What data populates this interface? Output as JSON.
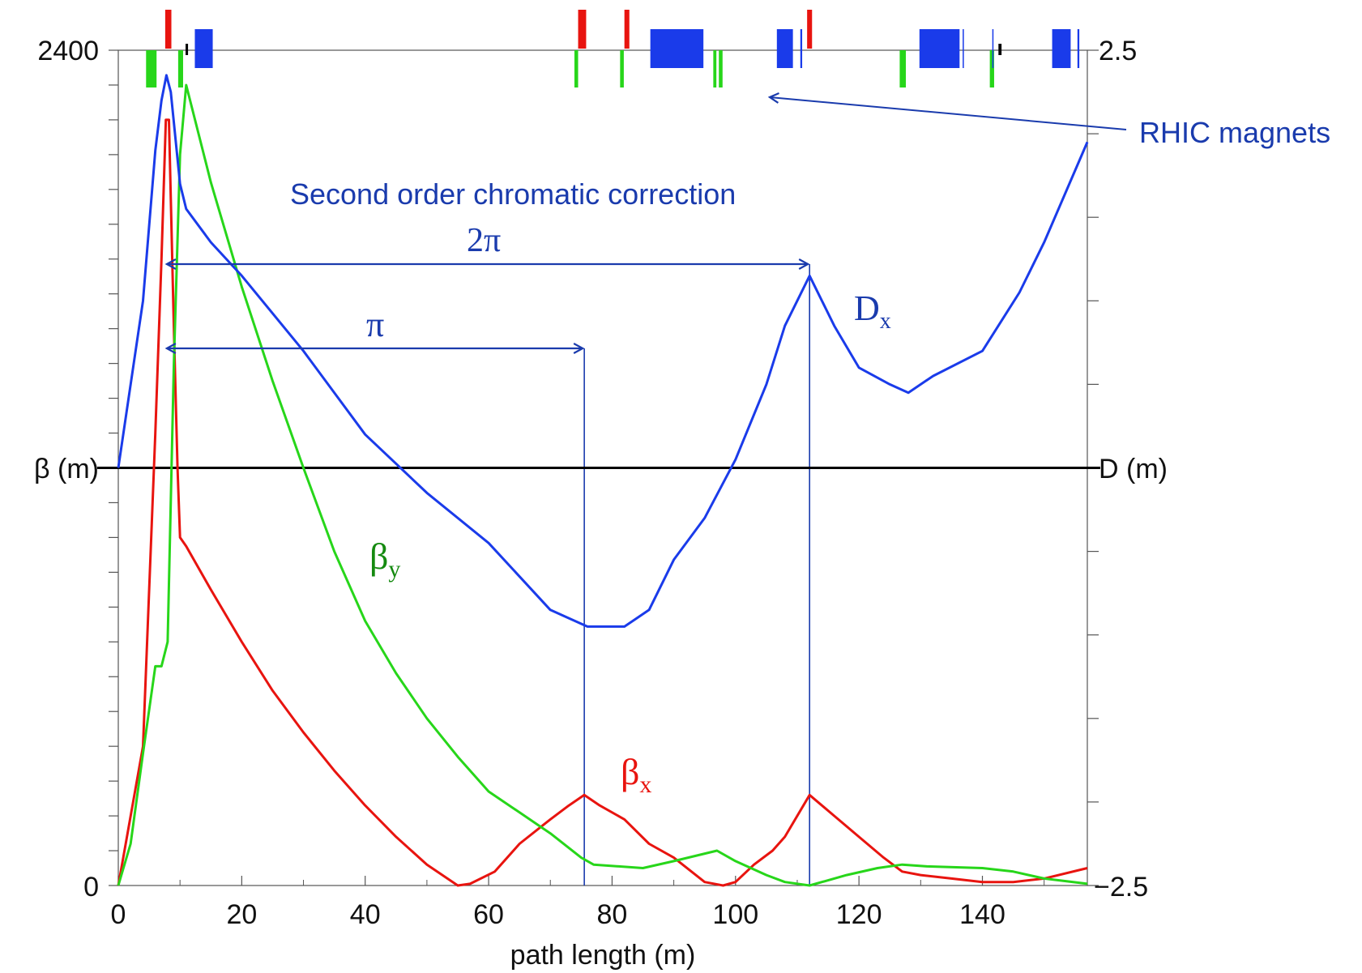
{
  "chart_data": {
    "type": "line",
    "x_axis": {
      "label": "path length (m)",
      "range": [
        0,
        157
      ],
      "ticks": [
        "0",
        "20",
        "40",
        "60",
        "80",
        "100",
        "120",
        "140"
      ]
    },
    "y_axis_left": {
      "label": "β (m)",
      "range": [
        0,
        2400
      ],
      "tick_top": "2400",
      "tick_bottom": "0"
    },
    "y_axis_right": {
      "label": "D (m)",
      "range": [
        -2.5,
        2.5
      ],
      "tick_top": "2.5",
      "tick_bottom": "−2.5"
    },
    "series": [
      {
        "name": "β",
        "subscript": "x",
        "color": "#e8140f",
        "axis": "left",
        "points": [
          [
            0,
            0
          ],
          [
            4,
            400
          ],
          [
            6,
            1300
          ],
          [
            7,
            1800
          ],
          [
            7.7,
            2200
          ],
          [
            8.2,
            2200
          ],
          [
            9,
            1600
          ],
          [
            9.6,
            1200
          ],
          [
            10,
            1000
          ],
          [
            11,
            975
          ],
          [
            15,
            850
          ],
          [
            20,
            700
          ],
          [
            25,
            560
          ],
          [
            30,
            440
          ],
          [
            35,
            330
          ],
          [
            40,
            230
          ],
          [
            45,
            140
          ],
          [
            50,
            60
          ],
          [
            55,
            0
          ],
          [
            57,
            5
          ],
          [
            61,
            40
          ],
          [
            65,
            120
          ],
          [
            70,
            190
          ],
          [
            73,
            230
          ],
          [
            75.5,
            260
          ],
          [
            78,
            230
          ],
          [
            82,
            190
          ],
          [
            86,
            120
          ],
          [
            90,
            80
          ],
          [
            95,
            10
          ],
          [
            98,
            0
          ],
          [
            100,
            10
          ],
          [
            103,
            60
          ],
          [
            106,
            100
          ],
          [
            108,
            140
          ],
          [
            112,
            260
          ],
          [
            116,
            200
          ],
          [
            120,
            140
          ],
          [
            124,
            80
          ],
          [
            127,
            40
          ],
          [
            130,
            30
          ],
          [
            135,
            20
          ],
          [
            140,
            10
          ],
          [
            145,
            10
          ],
          [
            150,
            20
          ],
          [
            157,
            50
          ]
        ]
      },
      {
        "name": "β",
        "subscript": "y",
        "color": "#27d61a",
        "axis": "left",
        "points": [
          [
            0,
            0
          ],
          [
            2,
            120
          ],
          [
            4,
            380
          ],
          [
            6,
            630
          ],
          [
            7,
            630
          ],
          [
            8,
            700
          ],
          [
            9,
            1500
          ],
          [
            10,
            2100
          ],
          [
            11,
            2300
          ],
          [
            15,
            2020
          ],
          [
            20,
            1720
          ],
          [
            25,
            1450
          ],
          [
            30,
            1200
          ],
          [
            35,
            960
          ],
          [
            40,
            760
          ],
          [
            45,
            610
          ],
          [
            50,
            480
          ],
          [
            55,
            370
          ],
          [
            60,
            270
          ],
          [
            65,
            210
          ],
          [
            70,
            150
          ],
          [
            75,
            80
          ],
          [
            77,
            60
          ],
          [
            85,
            50
          ],
          [
            90,
            70
          ],
          [
            97,
            100
          ],
          [
            100,
            70
          ],
          [
            105,
            30
          ],
          [
            108,
            10
          ],
          [
            112,
            0
          ],
          [
            118,
            30
          ],
          [
            123,
            50
          ],
          [
            127,
            60
          ],
          [
            131,
            55
          ],
          [
            140,
            50
          ],
          [
            145,
            40
          ],
          [
            150,
            20
          ],
          [
            157,
            5
          ]
        ]
      },
      {
        "name": "D",
        "subscript": "x",
        "color": "#1a3bea",
        "axis": "right",
        "points": [
          [
            0,
            0
          ],
          [
            4,
            1.0
          ],
          [
            6,
            1.9
          ],
          [
            7,
            2.2
          ],
          [
            7.8,
            2.35
          ],
          [
            8.5,
            2.25
          ],
          [
            10,
            1.7
          ],
          [
            11,
            1.55
          ],
          [
            15,
            1.35
          ],
          [
            20,
            1.15
          ],
          [
            30,
            0.7
          ],
          [
            40,
            0.2
          ],
          [
            50,
            -0.15
          ],
          [
            60,
            -0.45
          ],
          [
            70,
            -0.85
          ],
          [
            76,
            -0.95
          ],
          [
            82,
            -0.95
          ],
          [
            86,
            -0.85
          ],
          [
            90,
            -0.55
          ],
          [
            95,
            -0.3
          ],
          [
            100,
            0.05
          ],
          [
            105,
            0.5
          ],
          [
            108,
            0.85
          ],
          [
            112,
            1.15
          ],
          [
            116,
            0.85
          ],
          [
            120,
            0.6
          ],
          [
            125,
            0.5
          ],
          [
            128,
            0.45
          ],
          [
            132,
            0.55
          ],
          [
            140,
            0.7
          ],
          [
            146,
            1.05
          ],
          [
            150,
            1.35
          ],
          [
            157,
            1.95
          ]
        ]
      }
    ],
    "magnets": {
      "color_horizontal": "#e8140f",
      "color_vertical": "#27d61a",
      "color_dipole": "#1a3bea",
      "color_marker": "#000000",
      "horizontal_quads": [
        [
          7.6,
          8.6
        ],
        [
          74.5,
          75.8
        ],
        [
          82,
          82.8
        ],
        [
          111.6,
          112.4
        ]
      ],
      "vertical_quads": [
        [
          4.5,
          6.2
        ],
        [
          9.7,
          10.5
        ],
        [
          73.9,
          74.5
        ],
        [
          81.3,
          81.9
        ],
        [
          96.4,
          96.9
        ],
        [
          97.3,
          97.9
        ],
        [
          126.6,
          127.6
        ],
        [
          141.2,
          141.9
        ]
      ],
      "dipoles": [
        [
          12.4,
          15.3
        ],
        [
          86.2,
          94.8
        ],
        [
          106.7,
          109.3
        ],
        [
          110.5,
          110.8
        ],
        [
          129.8,
          136.3
        ],
        [
          136.8,
          137
        ],
        [
          141.6,
          141.8
        ],
        [
          151.3,
          154.3
        ],
        [
          155.4,
          155.7
        ]
      ],
      "markers": [
        [
          10.9,
          11.3
        ],
        [
          142.6,
          143.1
        ]
      ]
    },
    "annotations": {
      "magnets_label": "RHIC magnets",
      "correction_label": "Second order chromatic correction",
      "two_pi_label": "2π",
      "pi_label": "π",
      "arrow_color": "#1a3bad",
      "pi_span": [
        7.6,
        75.5
      ],
      "two_pi_span": [
        7.6,
        112
      ]
    }
  }
}
